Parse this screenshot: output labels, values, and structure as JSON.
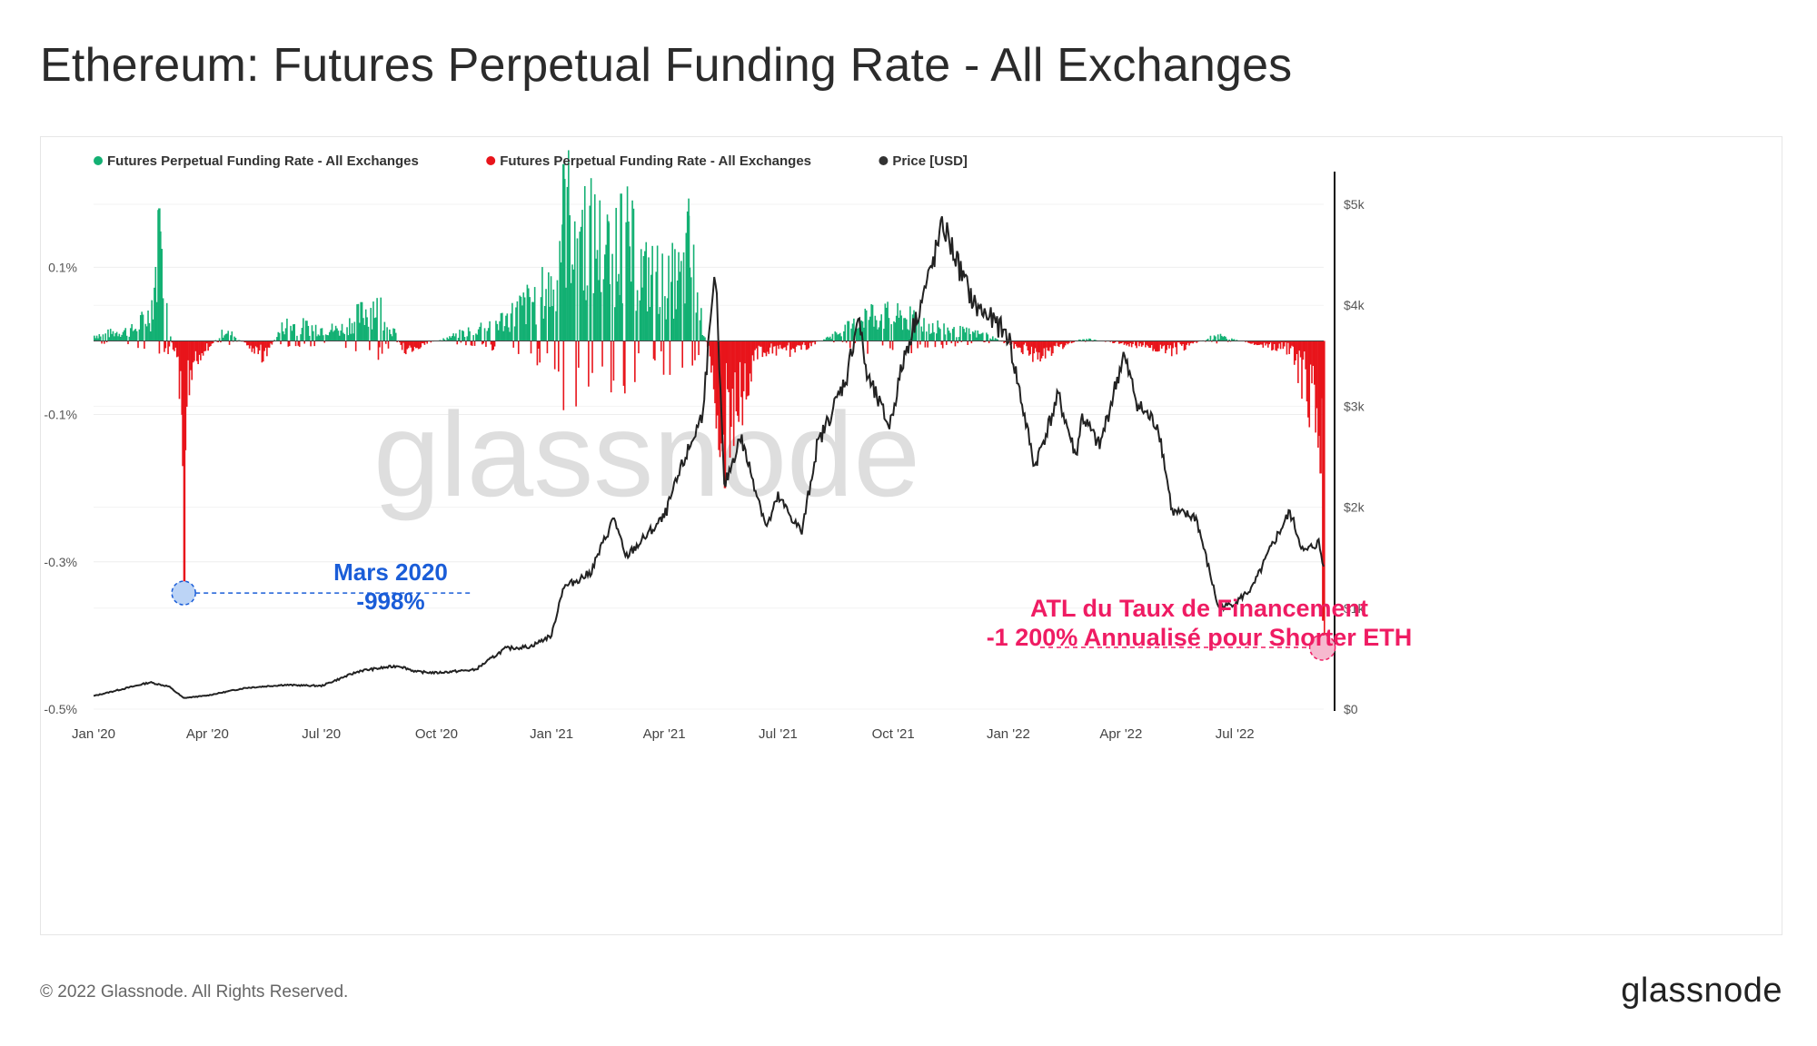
{
  "page": {
    "title": "Ethereum: Futures Perpetual Funding Rate - All Exchanges",
    "copyright": "© 2022 Glassnode. All Rights Reserved.",
    "logo_text": "glassnode",
    "watermark": "glassnode"
  },
  "chart_data": {
    "type": "bar",
    "title": "Ethereum: Futures Perpetual Funding Rate - All Exchanges",
    "legend": [
      {
        "label": "Futures Perpetual Funding Rate - All Exchanges",
        "color": "#13b073"
      },
      {
        "label": "Futures Perpetual Funding Rate - All Exchanges",
        "color": "#e8141b"
      },
      {
        "label": "Price [USD]",
        "color": "#333333"
      }
    ],
    "legend_position": "top-left",
    "grid": true,
    "x_ticks": [
      "Jan '20",
      "Apr '20",
      "Jul '20",
      "Oct '20",
      "Jan '21",
      "Apr '21",
      "Jul '21",
      "Oct '21",
      "Jan '22",
      "Apr '22",
      "Jul '22"
    ],
    "x_tick_dates": [
      "2020-01-01",
      "2020-04-01",
      "2020-07-01",
      "2020-10-01",
      "2021-01-01",
      "2021-04-01",
      "2021-07-01",
      "2021-10-01",
      "2022-01-01",
      "2022-04-01",
      "2022-07-01"
    ],
    "x_range": [
      "2020-01-01",
      "2022-09-10"
    ],
    "left_axis": {
      "ticks": [
        "0.1%",
        "-0.1%",
        "-0.3%",
        "-0.5%"
      ],
      "tick_values": [
        0.1,
        -0.1,
        -0.3,
        -0.5
      ],
      "range": [
        -0.5,
        0.22
      ],
      "unit": "%"
    },
    "right_axis": {
      "ticks": [
        "$5k",
        "$4k",
        "$3k",
        "$2k",
        "$1k",
        "$0"
      ],
      "tick_values": [
        5000,
        4000,
        3000,
        2000,
        1000,
        0
      ],
      "range": [
        0,
        5000
      ]
    },
    "funding_rate_series": {
      "name": "Futures Perpetual Funding Rate - All Exchanges",
      "points": [
        [
          "2020-01-01",
          0.01
        ],
        [
          "2020-02-01",
          0.02
        ],
        [
          "2020-02-15",
          0.05
        ],
        [
          "2020-02-22",
          0.18
        ],
        [
          "2020-03-01",
          0.03
        ],
        [
          "2020-03-12",
          -0.17
        ],
        [
          "2020-03-13",
          -0.33
        ],
        [
          "2020-03-20",
          -0.04
        ],
        [
          "2020-04-15",
          0.02
        ],
        [
          "2020-05-15",
          -0.03
        ],
        [
          "2020-06-01",
          0.03
        ],
        [
          "2020-07-15",
          0.02
        ],
        [
          "2020-08-15",
          0.07
        ],
        [
          "2020-09-05",
          -0.02
        ],
        [
          "2020-10-15",
          0.01
        ],
        [
          "2020-11-25",
          0.04
        ],
        [
          "2021-01-01",
          0.1
        ],
        [
          "2021-01-10",
          0.24
        ],
        [
          "2021-02-15",
          0.16
        ],
        [
          "2021-02-25",
          0.2
        ],
        [
          "2021-03-15",
          0.12
        ],
        [
          "2021-04-15",
          0.11
        ],
        [
          "2021-04-20",
          0.17
        ],
        [
          "2021-05-19",
          -0.2
        ],
        [
          "2021-06-15",
          -0.02
        ],
        [
          "2021-07-15",
          -0.02
        ],
        [
          "2021-09-01",
          0.03
        ],
        [
          "2021-09-07",
          0.05
        ],
        [
          "2021-10-15",
          0.04
        ],
        [
          "2021-11-15",
          0.02
        ],
        [
          "2021-12-15",
          0.01
        ],
        [
          "2022-01-24",
          -0.03
        ],
        [
          "2022-03-01",
          0.005
        ],
        [
          "2022-05-12",
          -0.02
        ],
        [
          "2022-06-15",
          0.01
        ],
        [
          "2022-08-15",
          -0.02
        ],
        [
          "2022-09-07",
          -0.18
        ],
        [
          "2022-09-09",
          -0.38
        ]
      ]
    },
    "price_series": {
      "name": "Price [USD]",
      "points": [
        [
          "2020-01-01",
          130
        ],
        [
          "2020-02-15",
          265
        ],
        [
          "2020-03-01",
          225
        ],
        [
          "2020-03-13",
          110
        ],
        [
          "2020-04-01",
          135
        ],
        [
          "2020-05-01",
          210
        ],
        [
          "2020-06-01",
          240
        ],
        [
          "2020-07-01",
          230
        ],
        [
          "2020-08-01",
          380
        ],
        [
          "2020-09-01",
          430
        ],
        [
          "2020-09-15",
          370
        ],
        [
          "2020-10-01",
          360
        ],
        [
          "2020-11-01",
          390
        ],
        [
          "2020-11-25",
          600
        ],
        [
          "2020-12-15",
          620
        ],
        [
          "2021-01-01",
          730
        ],
        [
          "2021-01-10",
          1200
        ],
        [
          "2021-02-01",
          1350
        ],
        [
          "2021-02-20",
          1900
        ],
        [
          "2021-03-01",
          1500
        ],
        [
          "2021-04-01",
          1900
        ],
        [
          "2021-04-15",
          2400
        ],
        [
          "2021-05-01",
          2900
        ],
        [
          "2021-05-12",
          4300
        ],
        [
          "2021-05-19",
          2200
        ],
        [
          "2021-06-01",
          2700
        ],
        [
          "2021-06-22",
          1800
        ],
        [
          "2021-07-01",
          2100
        ],
        [
          "2021-07-20",
          1750
        ],
        [
          "2021-08-01",
          2600
        ],
        [
          "2021-08-25",
          3300
        ],
        [
          "2021-09-03",
          3900
        ],
        [
          "2021-09-10",
          3300
        ],
        [
          "2021-09-28",
          2800
        ],
        [
          "2021-10-10",
          3500
        ],
        [
          "2021-10-30",
          4300
        ],
        [
          "2021-11-10",
          4800
        ],
        [
          "2021-11-25",
          4300
        ],
        [
          "2021-12-05",
          4000
        ],
        [
          "2021-12-15",
          3900
        ],
        [
          "2022-01-01",
          3700
        ],
        [
          "2022-01-22",
          2400
        ],
        [
          "2022-02-10",
          3100
        ],
        [
          "2022-02-24",
          2500
        ],
        [
          "2022-03-01",
          2900
        ],
        [
          "2022-03-15",
          2600
        ],
        [
          "2022-04-03",
          3500
        ],
        [
          "2022-04-15",
          3000
        ],
        [
          "2022-05-01",
          2800
        ],
        [
          "2022-05-12",
          1950
        ],
        [
          "2022-05-31",
          1900
        ],
        [
          "2022-06-18",
          1000
        ],
        [
          "2022-07-01",
          1050
        ],
        [
          "2022-07-15",
          1200
        ],
        [
          "2022-08-01",
          1650
        ],
        [
          "2022-08-14",
          1950
        ],
        [
          "2022-08-25",
          1550
        ],
        [
          "2022-09-06",
          1650
        ],
        [
          "2022-09-10",
          1400
        ]
      ]
    },
    "annotations": [
      {
        "line1": "Mars 2020",
        "line2": "-998%",
        "date": "2020-03-13",
        "value": -0.33,
        "color": "#1a5dd8"
      },
      {
        "line1": "ATL du Taux de Financement",
        "line2": "-1 200% Annualisé pour Shorter ETH",
        "date": "2022-09-09",
        "value": -0.4,
        "color": "#ef1c63"
      }
    ]
  }
}
